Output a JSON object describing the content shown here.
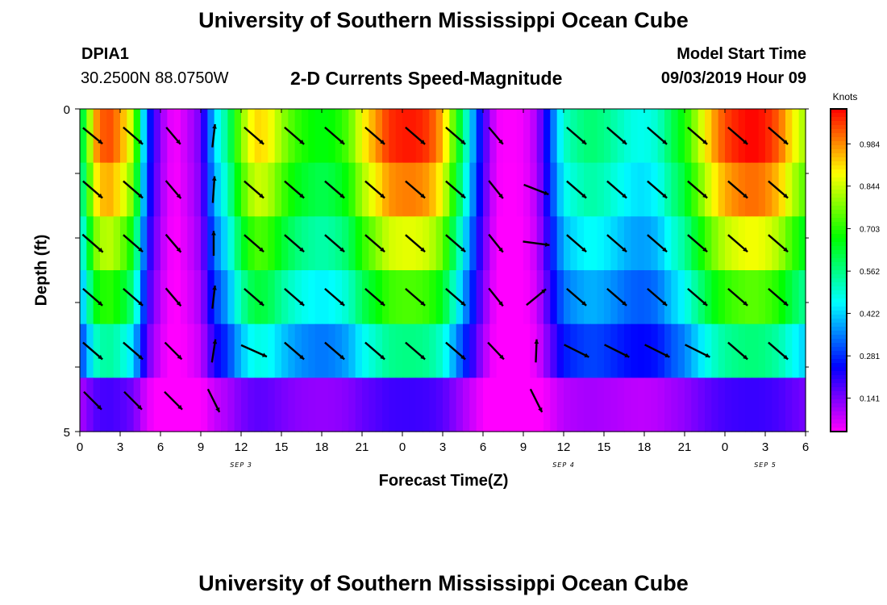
{
  "header": {
    "title": "University of Southern Mississippi Ocean Cube",
    "station_id": "DPIA1",
    "coordinates": "30.2500N 88.0750W",
    "subtitle": "2-D Currents Speed-Magnitude",
    "model_start_label": "Model Start Time",
    "model_start_value": "09/03/2019 Hour 09"
  },
  "footer": {
    "title": "University of Southern Mississippi Ocean Cube"
  },
  "chart_data": {
    "type": "heatmap",
    "title": "2-D Currents Speed-Magnitude",
    "xlabel": "Forecast Time(Z)",
    "ylabel": "Depth (ft)",
    "colorbar_label": "Knots",
    "colorbar_ticks": [
      "0.984",
      "0.844",
      "0.703",
      "0.562",
      "0.422",
      "0.281",
      "0.141"
    ],
    "colorbar_tick_values": [
      0.984,
      0.844,
      0.703,
      0.562,
      0.422,
      0.281,
      0.141
    ],
    "colorbar_range": [
      0.03,
      1.1
    ],
    "x_tick_labels": [
      "0",
      "3",
      "6",
      "9",
      "12",
      "15",
      "18",
      "21",
      "0",
      "3",
      "6",
      "9",
      "12",
      "15",
      "18",
      "21",
      "0",
      "3",
      "6"
    ],
    "x_range_hours": [
      0,
      54
    ],
    "date_labels": [
      {
        "text": "SEP 3",
        "hour": 12
      },
      {
        "text": "SEP 4",
        "hour": 36
      },
      {
        "text": "SEP 5",
        "hour": 51
      }
    ],
    "y_tick_labels": [
      "0",
      "5"
    ],
    "y_range": [
      0,
      5
    ],
    "depth_rows": [
      0,
      1,
      2,
      3,
      4,
      5
    ],
    "speed_profile": [
      [
        0,
        0.58
      ],
      [
        0.5,
        0.68
      ],
      [
        1,
        0.95
      ],
      [
        2,
        1.05
      ],
      [
        3,
        0.98
      ],
      [
        4,
        0.82
      ],
      [
        5,
        0.3
      ],
      [
        6,
        0.12
      ],
      [
        7,
        0.03
      ],
      [
        8,
        0.08
      ],
      [
        9,
        0.15
      ],
      [
        10,
        0.42
      ],
      [
        11,
        0.56
      ],
      [
        12,
        0.78
      ],
      [
        13,
        0.92
      ],
      [
        14,
        0.9
      ],
      [
        15,
        0.8
      ],
      [
        16,
        0.72
      ],
      [
        17,
        0.68
      ],
      [
        18,
        0.66
      ],
      [
        19,
        0.68
      ],
      [
        20,
        0.74
      ],
      [
        21,
        0.88
      ],
      [
        22,
        0.97
      ],
      [
        23,
        1.06
      ],
      [
        24,
        1.08
      ],
      [
        25,
        1.08
      ],
      [
        26,
        1.05
      ],
      [
        27,
        0.95
      ],
      [
        28,
        0.7
      ],
      [
        29,
        0.45
      ],
      [
        30,
        0.2
      ],
      [
        31,
        0.04
      ],
      [
        32,
        0.03
      ],
      [
        33,
        0.04
      ],
      [
        34,
        0.1
      ],
      [
        35,
        0.3
      ],
      [
        36,
        0.5
      ],
      [
        37,
        0.55
      ],
      [
        38,
        0.58
      ],
      [
        39,
        0.56
      ],
      [
        40,
        0.52
      ],
      [
        41,
        0.48
      ],
      [
        42,
        0.47
      ],
      [
        43,
        0.5
      ],
      [
        44,
        0.6
      ],
      [
        45,
        0.68
      ],
      [
        46,
        0.82
      ],
      [
        47,
        0.95
      ],
      [
        48,
        1.04
      ],
      [
        49,
        1.08
      ],
      [
        50,
        1.1
      ],
      [
        51,
        1.08
      ],
      [
        52,
        1.02
      ],
      [
        53,
        0.9
      ],
      [
        54,
        0.8
      ]
    ],
    "depth_factor": [
      1.0,
      0.92,
      0.8,
      0.68,
      0.52,
      0.18
    ],
    "arrow_hours": [
      0,
      3,
      6,
      9,
      12,
      15,
      18,
      21,
      24,
      27,
      30,
      33,
      36,
      39,
      42,
      45,
      48,
      51
    ],
    "arrow_depths": [
      0,
      1,
      2,
      3,
      4,
      5
    ],
    "arrows": [
      [
        [
          2.2,
          1.8
        ],
        [
          2.2,
          1.9
        ],
        [
          2.3,
          2.0
        ],
        [
          2.2,
          1.9
        ],
        [
          2.2,
          1.9
        ],
        [
          2.0,
          2.0
        ]
      ],
      [
        [
          2.2,
          1.9
        ],
        [
          2.2,
          1.9
        ],
        [
          2.2,
          1.9
        ],
        [
          2.2,
          1.9
        ],
        [
          2.2,
          1.9
        ],
        [
          2.0,
          2.0
        ]
      ],
      [
        [
          1.6,
          1.9
        ],
        [
          1.7,
          2.0
        ],
        [
          1.7,
          2.0
        ],
        [
          1.7,
          2.0
        ],
        [
          1.9,
          1.9
        ],
        [
          2.0,
          2.0
        ]
      ],
      [
        [
          0.3,
          -2.6
        ],
        [
          0.2,
          -3.0
        ],
        [
          0.0,
          -2.8
        ],
        [
          0.3,
          -2.6
        ],
        [
          0.4,
          -2.6
        ],
        [
          1.3,
          2.6
        ]
      ],
      [
        [
          2.2,
          1.9
        ],
        [
          2.2,
          1.9
        ],
        [
          2.2,
          1.9
        ],
        [
          2.2,
          1.9
        ],
        [
          2.9,
          1.3
        ],
        [
          0,
          0
        ]
      ],
      [
        [
          2.2,
          1.9
        ],
        [
          2.2,
          1.9
        ],
        [
          2.2,
          1.9
        ],
        [
          2.2,
          1.9
        ],
        [
          2.2,
          1.9
        ],
        [
          0,
          0
        ]
      ],
      [
        [
          2.2,
          1.9
        ],
        [
          2.2,
          1.9
        ],
        [
          2.2,
          1.9
        ],
        [
          2.2,
          1.9
        ],
        [
          2.2,
          1.9
        ],
        [
          0,
          0
        ]
      ],
      [
        [
          2.2,
          1.9
        ],
        [
          2.2,
          1.9
        ],
        [
          2.2,
          1.9
        ],
        [
          2.2,
          1.9
        ],
        [
          2.2,
          1.9
        ],
        [
          0,
          0
        ]
      ],
      [
        [
          2.2,
          1.9
        ],
        [
          2.2,
          1.9
        ],
        [
          2.2,
          1.9
        ],
        [
          2.2,
          1.9
        ],
        [
          2.2,
          1.9
        ],
        [
          0,
          0
        ]
      ],
      [
        [
          2.2,
          1.9
        ],
        [
          2.2,
          1.9
        ],
        [
          2.2,
          1.9
        ],
        [
          2.2,
          1.9
        ],
        [
          2.2,
          1.9
        ],
        [
          0,
          0
        ]
      ],
      [
        [
          1.6,
          1.9
        ],
        [
          1.6,
          2.0
        ],
        [
          1.6,
          2.0
        ],
        [
          1.6,
          2.0
        ],
        [
          1.8,
          1.9
        ],
        [
          0,
          0
        ]
      ],
      [
        [
          0.0,
          0.0
        ],
        [
          2.8,
          1.1
        ],
        [
          3.0,
          0.4
        ],
        [
          2.2,
          -1.8
        ],
        [
          0.1,
          -2.6
        ],
        [
          1.3,
          2.6
        ]
      ],
      [
        [
          2.2,
          1.9
        ],
        [
          2.2,
          1.9
        ],
        [
          2.2,
          1.9
        ],
        [
          2.2,
          1.9
        ],
        [
          2.8,
          1.4
        ],
        [
          0,
          0
        ]
      ],
      [
        [
          2.2,
          1.9
        ],
        [
          2.2,
          1.9
        ],
        [
          2.2,
          1.9
        ],
        [
          2.2,
          1.9
        ],
        [
          2.8,
          1.4
        ],
        [
          0,
          0
        ]
      ],
      [
        [
          2.2,
          1.9
        ],
        [
          2.2,
          1.9
        ],
        [
          2.2,
          1.9
        ],
        [
          2.2,
          1.9
        ],
        [
          2.8,
          1.4
        ],
        [
          0,
          0
        ]
      ],
      [
        [
          2.2,
          1.9
        ],
        [
          2.2,
          1.9
        ],
        [
          2.2,
          1.9
        ],
        [
          2.2,
          1.9
        ],
        [
          2.8,
          1.4
        ],
        [
          0,
          0
        ]
      ],
      [
        [
          2.2,
          1.9
        ],
        [
          2.2,
          1.9
        ],
        [
          2.2,
          1.9
        ],
        [
          2.2,
          1.9
        ],
        [
          2.2,
          1.9
        ],
        [
          0,
          0
        ]
      ],
      [
        [
          2.2,
          1.9
        ],
        [
          2.2,
          1.9
        ],
        [
          2.2,
          1.9
        ],
        [
          2.2,
          1.9
        ],
        [
          2.2,
          1.9
        ],
        [
          0,
          0
        ]
      ]
    ]
  }
}
